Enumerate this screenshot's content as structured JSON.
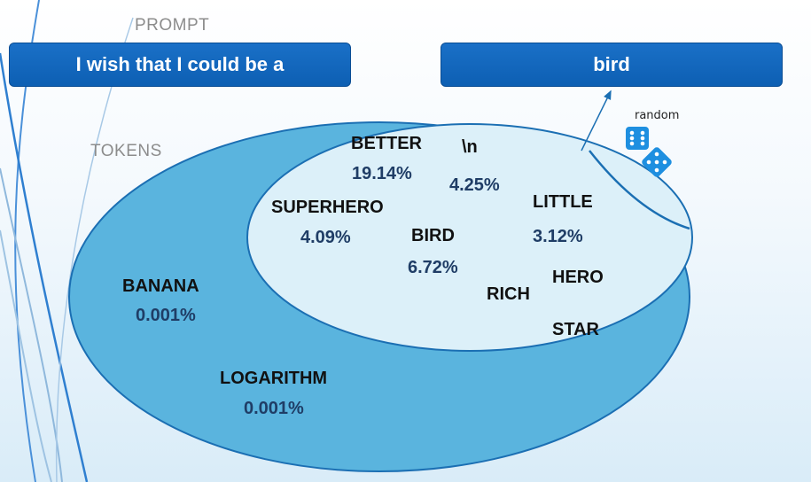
{
  "labels": {
    "prompt": "PROMPT",
    "tokens": "TOKENS",
    "random": "random"
  },
  "prompt_box": {
    "text": "I wish that I could be a"
  },
  "output_box": {
    "text": "bird"
  },
  "inner_tokens": [
    {
      "token": "BETTER",
      "percent": "19.14%"
    },
    {
      "token": "\\n",
      "percent": "4.25%"
    },
    {
      "token": "SUPERHERO",
      "percent": "4.09%"
    },
    {
      "token": "BIRD",
      "percent": "6.72%"
    },
    {
      "token": "LITTLE",
      "percent": "3.12%"
    },
    {
      "token": "HERO"
    },
    {
      "token": "RICH"
    },
    {
      "token": "STAR"
    }
  ],
  "outer_tokens": [
    {
      "token": "BANANA",
      "percent": "0.001%"
    },
    {
      "token": "LOGARITHM",
      "percent": "0.001%"
    }
  ],
  "colors": {
    "box_blue": "#0d5fb3",
    "outer_ellipse": "#5ab4de",
    "inner_ellipse": "#dcf0f9",
    "ellipse_border": "#1b6fb3",
    "percent_text": "#1f3d66",
    "dice": "#1e8fe0"
  },
  "icons": [
    "dice-icon",
    "arrow-icon"
  ]
}
